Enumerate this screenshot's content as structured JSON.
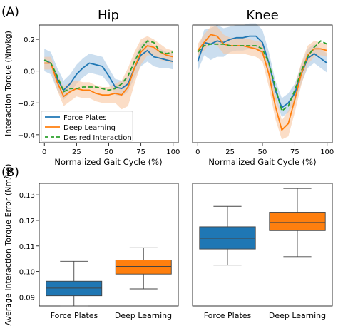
{
  "panel_labels": [
    "(A)",
    "(B)"
  ],
  "colors": {
    "force_plates": "#1f77b4",
    "deep_learning": "#ff7f0e",
    "desired": "#2ca02c",
    "force_band": "#a9c8e4",
    "deep_band": "#f9c7a0"
  },
  "chart_data": [
    {
      "type": "line",
      "title": "Hip",
      "xlabel": "Normalized Gait Cycle (%)",
      "ylabel": "Interaction Torque (Nm/kg)",
      "xlim": [
        -4,
        104
      ],
      "ylim": [
        -0.45,
        0.29
      ],
      "xticks": [
        "0",
        "25",
        "50",
        "75",
        "100"
      ],
      "yticks": [
        "0.2",
        "0.0",
        "−0.2",
        "−0.4"
      ],
      "legend_position": "lower-left",
      "series": [
        {
          "name": "Force Plates",
          "x": [
            0,
            5,
            10,
            15,
            20,
            25,
            30,
            35,
            40,
            45,
            50,
            55,
            60,
            65,
            70,
            75,
            80,
            85,
            90,
            95,
            100
          ],
          "y": [
            0.07,
            0.05,
            -0.05,
            -0.12,
            -0.08,
            -0.02,
            0.02,
            0.05,
            0.04,
            0.03,
            -0.03,
            -0.1,
            -0.11,
            -0.08,
            0.02,
            0.1,
            0.13,
            0.09,
            0.08,
            0.07,
            0.06
          ],
          "band": [
            0.07,
            0.07,
            0.07,
            0.06,
            0.06,
            0.06,
            0.06,
            0.06,
            0.06,
            0.06,
            0.05,
            0.05,
            0.05,
            0.05,
            0.06,
            0.07,
            0.07,
            0.06,
            0.06,
            0.05,
            0.05
          ]
        },
        {
          "name": "Deep Learning",
          "x": [
            0,
            5,
            10,
            15,
            20,
            25,
            30,
            35,
            40,
            45,
            50,
            55,
            60,
            65,
            70,
            75,
            80,
            85,
            90,
            95,
            100
          ],
          "y": [
            0.05,
            0.05,
            -0.07,
            -0.16,
            -0.13,
            -0.11,
            -0.12,
            -0.12,
            -0.14,
            -0.15,
            -0.15,
            -0.14,
            -0.15,
            -0.1,
            0.02,
            0.12,
            0.16,
            0.15,
            0.12,
            0.1,
            0.09
          ],
          "band": [
            0.04,
            0.04,
            0.05,
            0.06,
            0.06,
            0.05,
            0.05,
            0.05,
            0.05,
            0.05,
            0.05,
            0.06,
            0.09,
            0.12,
            0.1,
            0.08,
            0.06,
            0.05,
            0.05,
            0.04,
            0.04
          ]
        },
        {
          "name": "Desired Interaction",
          "dashed": true,
          "x": [
            0,
            5,
            10,
            15,
            20,
            25,
            30,
            35,
            40,
            45,
            50,
            55,
            60,
            65,
            70,
            75,
            80,
            85,
            90,
            95,
            100
          ],
          "y": [
            0.07,
            0.05,
            -0.03,
            -0.13,
            -0.11,
            -0.11,
            -0.1,
            -0.1,
            -0.1,
            -0.11,
            -0.12,
            -0.11,
            -0.08,
            -0.03,
            0.06,
            0.14,
            0.19,
            0.18,
            0.12,
            0.11,
            0.12
          ]
        }
      ]
    },
    {
      "type": "line",
      "title": "Knee",
      "xlabel": "Normalized Gait Cycle (%)",
      "xlim": [
        -4,
        104
      ],
      "ylim": [
        -0.45,
        0.29
      ],
      "xticks": [
        "0",
        "25",
        "50",
        "75",
        "100"
      ],
      "series": [
        {
          "name": "Force Plates",
          "x": [
            0,
            5,
            10,
            15,
            20,
            25,
            30,
            35,
            40,
            45,
            50,
            55,
            60,
            65,
            70,
            75,
            80,
            85,
            90,
            95,
            100
          ],
          "y": [
            0.06,
            0.18,
            0.17,
            0.19,
            0.18,
            0.2,
            0.21,
            0.21,
            0.22,
            0.22,
            0.18,
            0.05,
            -0.12,
            -0.23,
            -0.2,
            -0.14,
            -0.02,
            0.08,
            0.11,
            0.08,
            0.05
          ],
          "band": [
            0.06,
            0.08,
            0.1,
            0.1,
            0.09,
            0.08,
            0.08,
            0.08,
            0.08,
            0.08,
            0.08,
            0.07,
            0.06,
            0.06,
            0.06,
            0.06,
            0.06,
            0.06,
            0.06,
            0.06,
            0.06
          ]
        },
        {
          "name": "Deep Learning",
          "x": [
            0,
            5,
            10,
            15,
            20,
            25,
            30,
            35,
            40,
            45,
            50,
            55,
            60,
            65,
            70,
            75,
            80,
            85,
            90,
            95,
            100
          ],
          "y": [
            0.13,
            0.18,
            0.23,
            0.22,
            0.17,
            0.16,
            0.16,
            0.16,
            0.15,
            0.14,
            0.12,
            -0.02,
            -0.22,
            -0.37,
            -0.33,
            -0.18,
            -0.02,
            0.1,
            0.14,
            0.14,
            0.13
          ],
          "band": [
            0.04,
            0.05,
            0.05,
            0.06,
            0.06,
            0.05,
            0.05,
            0.05,
            0.05,
            0.05,
            0.06,
            0.08,
            0.08,
            0.06,
            0.08,
            0.08,
            0.07,
            0.06,
            0.05,
            0.04,
            0.04
          ]
        },
        {
          "name": "Desired Interaction",
          "dashed": true,
          "x": [
            0,
            5,
            10,
            15,
            20,
            25,
            30,
            35,
            40,
            45,
            50,
            55,
            60,
            65,
            70,
            75,
            80,
            85,
            90,
            95,
            100
          ],
          "y": [
            0.12,
            0.16,
            0.17,
            0.17,
            0.17,
            0.16,
            0.16,
            0.16,
            0.16,
            0.16,
            0.14,
            0.05,
            -0.1,
            -0.25,
            -0.22,
            -0.12,
            0.0,
            0.09,
            0.15,
            0.19,
            0.17
          ]
        }
      ]
    },
    {
      "type": "box",
      "ylabel": "Average Interaction Torque Error (Nm/kg)",
      "categories": [
        "Force Plates",
        "Deep Learning"
      ],
      "ylim": [
        0.0865,
        0.1345
      ],
      "yticks": [
        "0.09",
        "0.10",
        "0.11",
        "0.12",
        "0.13"
      ],
      "boxes": [
        {
          "name": "Force Plates",
          "whisker_low": 0.0865,
          "q1": 0.0905,
          "median": 0.0935,
          "q3": 0.0962,
          "whisker_high": 0.104
        },
        {
          "name": "Deep Learning",
          "whisker_low": 0.0932,
          "q1": 0.099,
          "median": 0.102,
          "q3": 0.1045,
          "whisker_high": 0.1093
        }
      ]
    },
    {
      "type": "box",
      "categories": [
        "Force Plates",
        "Deep Learning"
      ],
      "ylim": [
        0.0865,
        0.1345
      ],
      "boxes": [
        {
          "name": "Force Plates",
          "whisker_low": 0.1025,
          "q1": 0.1088,
          "median": 0.113,
          "q3": 0.1175,
          "whisker_high": 0.1255
        },
        {
          "name": "Deep Learning",
          "whisker_low": 0.1058,
          "q1": 0.116,
          "median": 0.1192,
          "q3": 0.1232,
          "whisker_high": 0.1325
        }
      ]
    }
  ]
}
